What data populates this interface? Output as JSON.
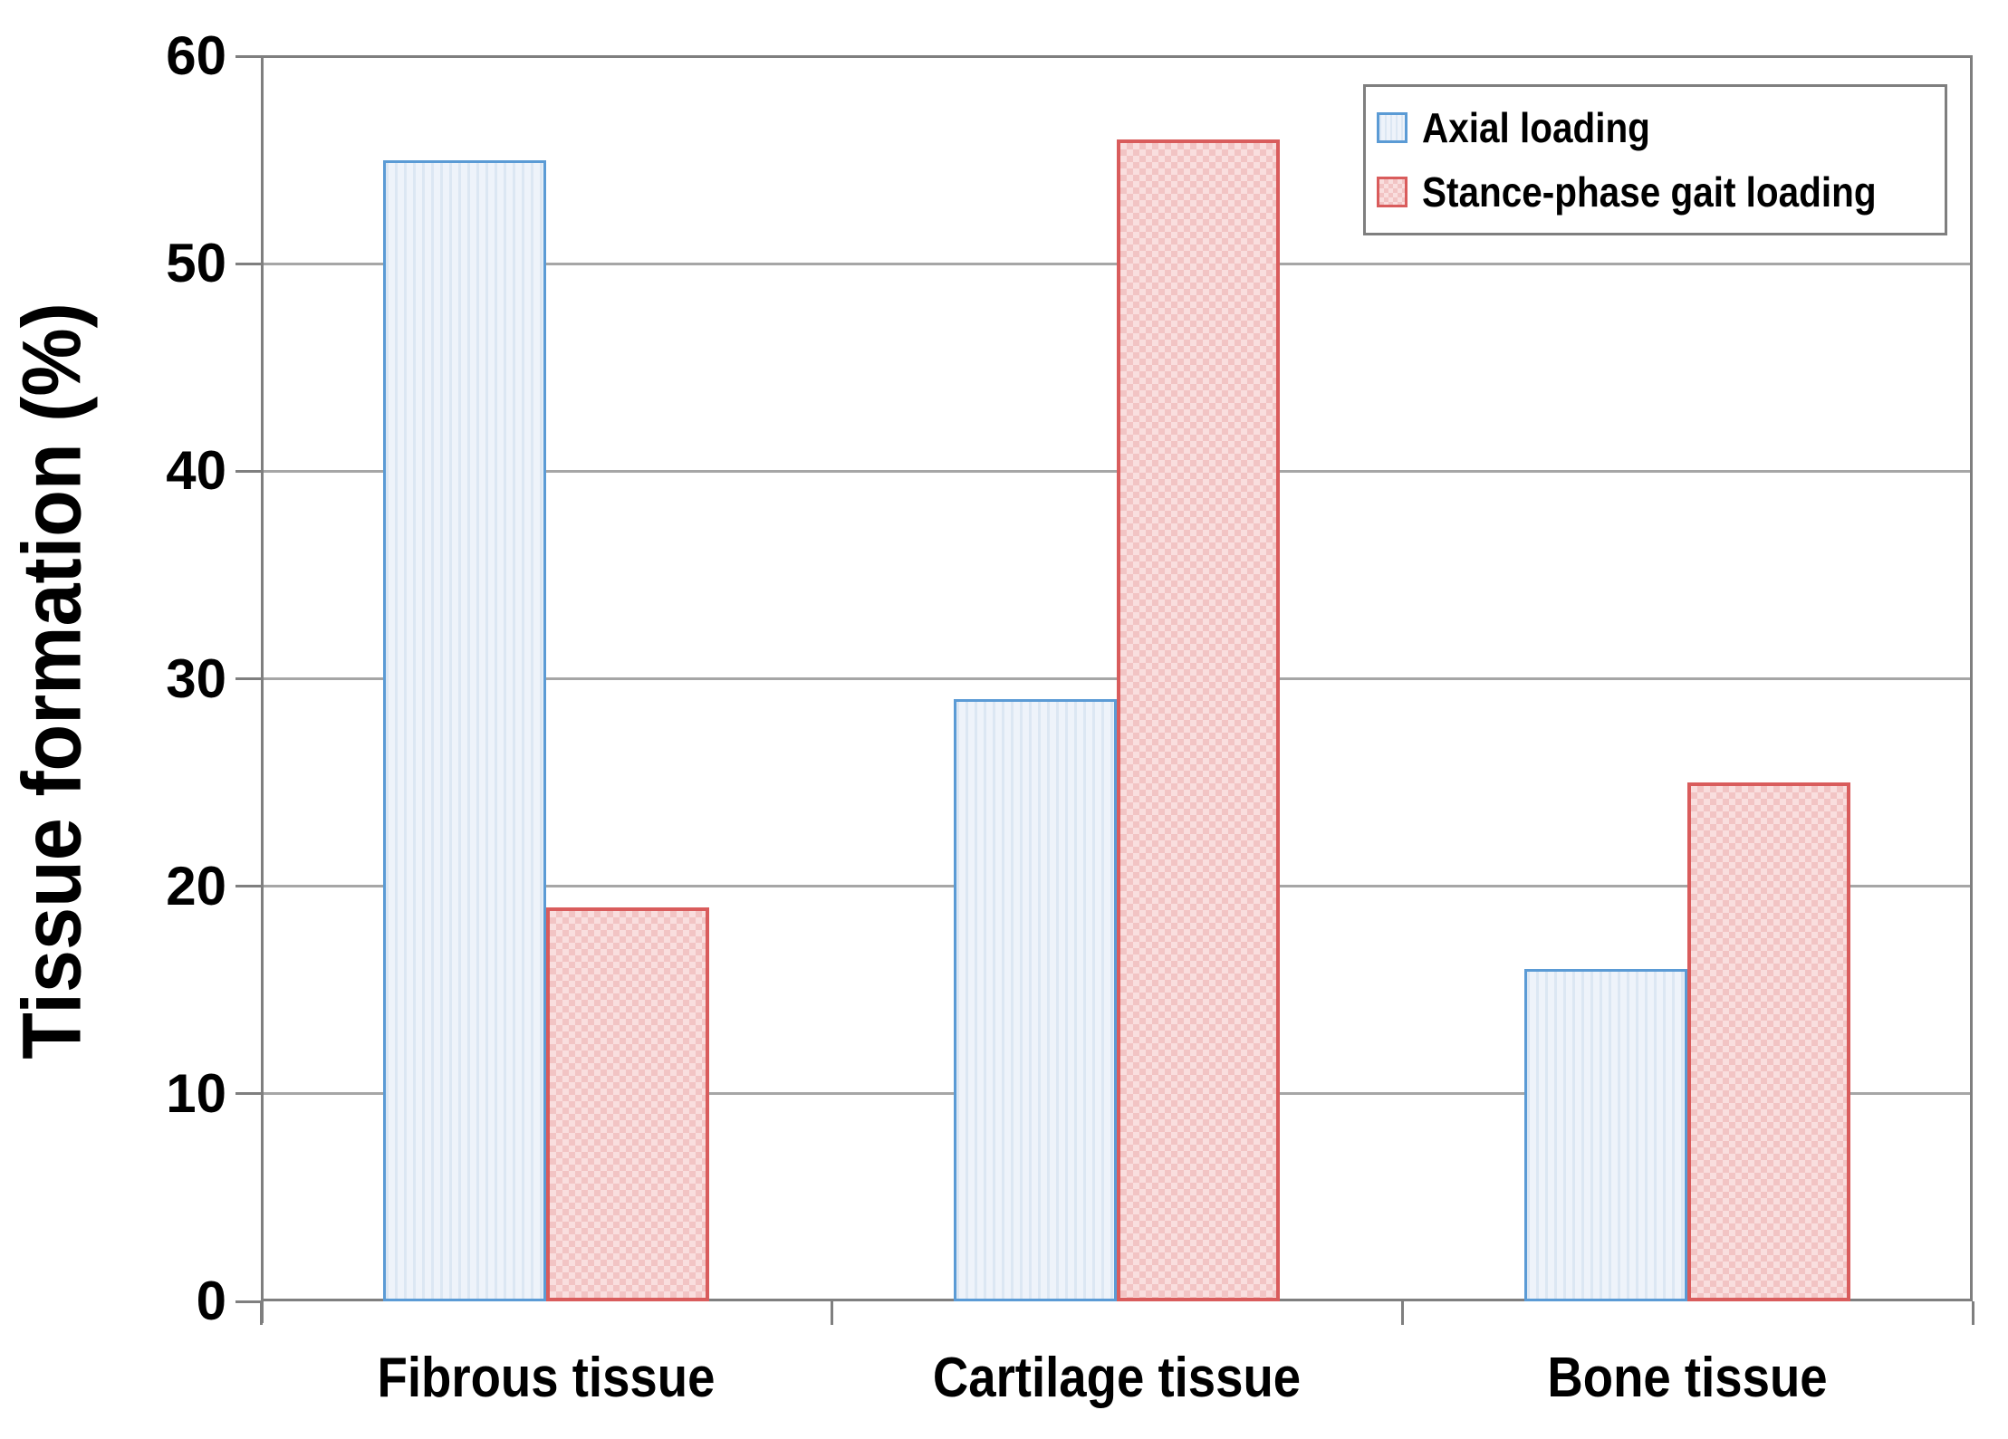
{
  "chart_data": {
    "type": "bar",
    "title": "",
    "ylabel": "Tissue formation (%)",
    "xlabel": "",
    "categories": [
      "Fibrous tissue",
      "Cartilage tissue",
      "Bone tissue"
    ],
    "series": [
      {
        "name": "Axial loading",
        "values": [
          55,
          29,
          16
        ],
        "border_color": "#5B9BD5",
        "fill_color": "#EEF3FA",
        "pattern_color": "#DCE7F3",
        "pattern": "vertical-stripes"
      },
      {
        "name": "Stance-phase gait loading",
        "values": [
          19,
          56,
          25
        ],
        "border_color": "#D95C5C",
        "fill_color": "#F9DEDE",
        "pattern_color": "#F2C4C4",
        "pattern": "dot-grid"
      }
    ],
    "ylim": [
      0,
      60
    ],
    "ytick_step": 10,
    "yticks": [
      0,
      10,
      20,
      30,
      40,
      50,
      60
    ],
    "grid": true,
    "legend_position": "top-right"
  },
  "colors": {
    "gridline": "#A6A6A6",
    "axis": "#7F7F7F",
    "legend_border": "#7F7F7F",
    "text": "#000000",
    "background": "#FFFFFF"
  }
}
